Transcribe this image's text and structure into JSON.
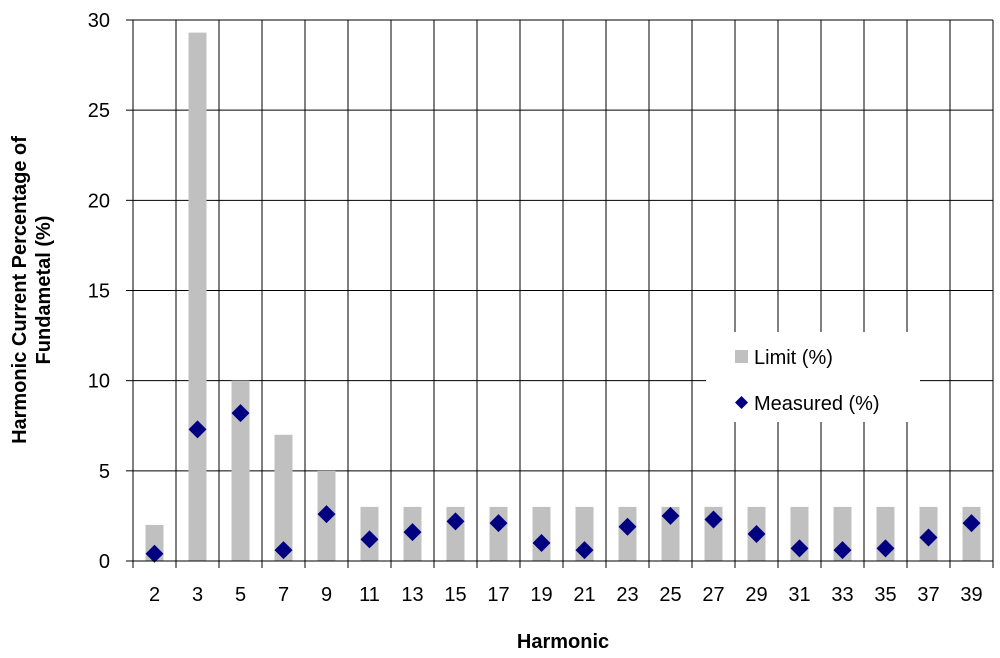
{
  "chart_data": {
    "type": "bar",
    "xlabel": "Harmonic",
    "ylabel_lines": [
      "Harmonic Current Percentage of",
      "Fundametal (%)"
    ],
    "categories": [
      "2",
      "3",
      "5",
      "7",
      "9",
      "11",
      "13",
      "15",
      "17",
      "19",
      "21",
      "23",
      "25",
      "27",
      "29",
      "31",
      "33",
      "35",
      "37",
      "39"
    ],
    "ylim": [
      0,
      30
    ],
    "yticks": [
      0,
      5,
      10,
      15,
      20,
      25,
      30
    ],
    "grid": "vertical-and-horizontal",
    "legend_position": "right-middle",
    "series": [
      {
        "name": "Limit (%)",
        "kind": "bar",
        "color": "#c0c0c0",
        "values": [
          2,
          29.3,
          10,
          7,
          5,
          3,
          3,
          3,
          3,
          3,
          3,
          3,
          3,
          3,
          3,
          3,
          3,
          3,
          3,
          3
        ]
      },
      {
        "name": "Measured (%)",
        "kind": "marker",
        "marker": "diamond",
        "color": "#000080",
        "values": [
          0.4,
          7.3,
          8.2,
          0.6,
          2.6,
          1.2,
          1.6,
          2.2,
          2.1,
          1.0,
          0.6,
          1.9,
          2.5,
          2.3,
          1.5,
          0.7,
          0.6,
          0.7,
          1.3,
          2.1
        ]
      }
    ]
  }
}
